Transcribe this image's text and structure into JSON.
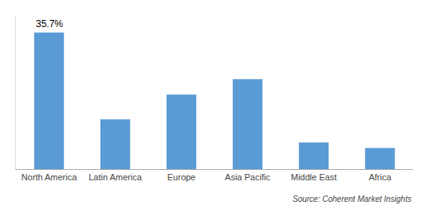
{
  "chart_data": {
    "type": "bar",
    "categories": [
      "North America",
      "Latin America",
      "Europe",
      "Asia Pacific",
      "Middle East",
      "Africa"
    ],
    "values": [
      35.7,
      13.0,
      19.5,
      23.5,
      7.0,
      5.5
    ],
    "color": "#5b9bd5",
    "ylim": [
      0,
      40
    ],
    "grid": false,
    "tick_labels": "x",
    "annotations": [
      {
        "category": "North America",
        "text": "35.7%"
      }
    ],
    "source": "Source: Coherent Market Insights"
  }
}
